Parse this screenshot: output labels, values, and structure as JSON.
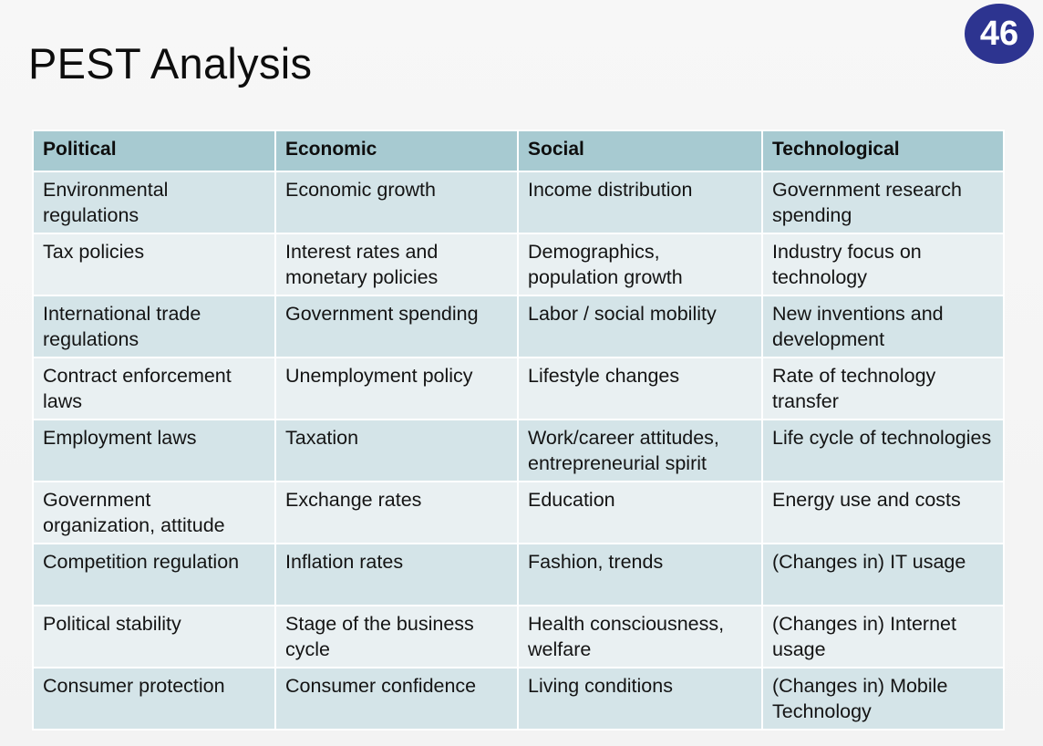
{
  "slide": {
    "title": "PEST Analysis",
    "page_number": "46"
  },
  "colors": {
    "badge": "#2d3490",
    "header_row": "#a7cad1",
    "row_dark": "#d4e4e8",
    "row_light": "#e9f0f2"
  },
  "table": {
    "headers": [
      "Political",
      "Economic",
      "Social",
      "Technological"
    ],
    "rows": [
      [
        "Environmental regulations",
        "Economic growth",
        "Income distribution",
        "Government research spending"
      ],
      [
        "Tax policies",
        "Interest rates and monetary policies",
        "Demographics, population growth",
        "Industry focus on technology"
      ],
      [
        "International trade regulations",
        "Government spending",
        "Labor / social mobility",
        "New inventions and development"
      ],
      [
        "Contract enforcement laws",
        "Unemployment policy",
        "Lifestyle changes",
        "Rate of technology transfer"
      ],
      [
        "Employment laws",
        "Taxation",
        "Work/career attitudes, entrepreneurial spirit",
        "Life cycle of technologies"
      ],
      [
        "Government organization, attitude",
        "Exchange rates",
        "Education",
        "Energy use and costs"
      ],
      [
        "Competition regulation",
        "Inflation rates",
        "Fashion, trends",
        "(Changes in) IT usage"
      ],
      [
        "Political stability",
        "Stage of the business cycle",
        "Health consciousness, welfare",
        "(Changes in) Internet usage"
      ],
      [
        "Consumer protection",
        "Consumer confidence",
        "Living conditions",
        "(Changes in) Mobile Technology"
      ]
    ]
  }
}
